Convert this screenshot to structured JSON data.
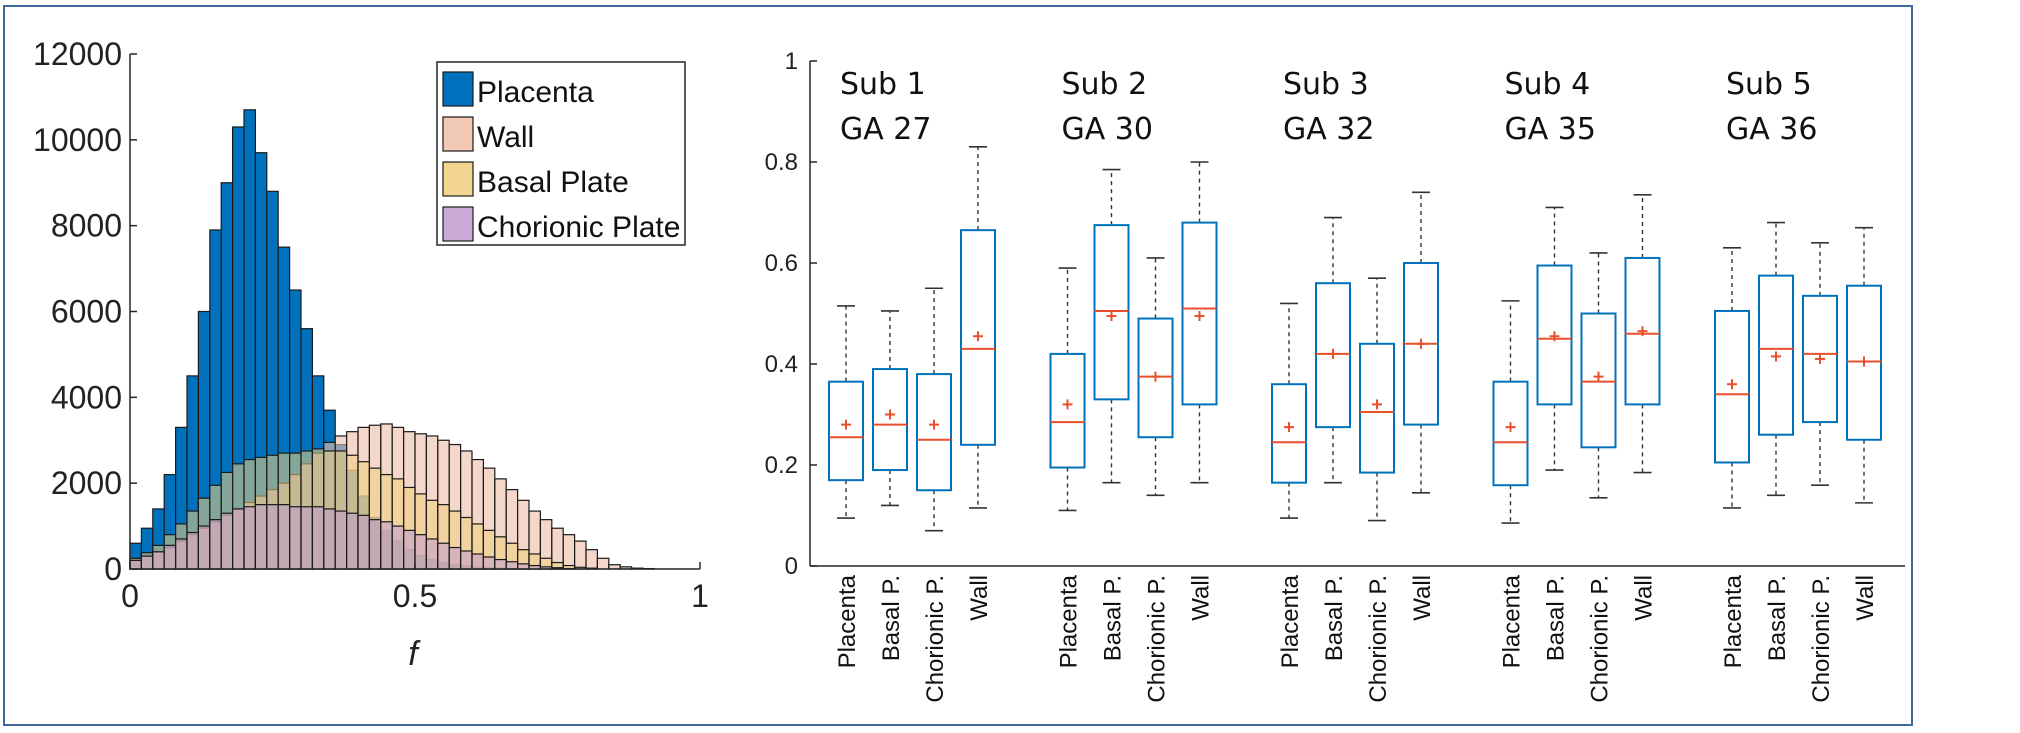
{
  "chart_data": [
    {
      "type": "histogram",
      "xlabel": "f",
      "ylabel": "",
      "xlim": [
        0,
        1
      ],
      "ylim": [
        0,
        12000
      ],
      "xticks": [
        "0",
        "0.5",
        "1"
      ],
      "yticks": [
        "0",
        "2000",
        "4000",
        "6000",
        "8000",
        "10000",
        "12000"
      ],
      "bin_width": 0.02,
      "bin_start": 0,
      "legend_position": "top-right",
      "series": [
        {
          "name": "Placenta",
          "color": "#0072bd",
          "values": [
            600,
            950,
            1400,
            2200,
            3300,
            4500,
            6000,
            7900,
            9000,
            10300,
            10700,
            9700,
            8800,
            7500,
            6500,
            5600,
            4500,
            3700,
            2900,
            2300,
            1700,
            1200,
            900,
            650,
            450,
            320,
            220,
            150,
            100,
            70,
            50,
            30,
            20,
            10,
            5,
            0,
            0,
            0,
            0,
            0,
            0,
            0,
            0,
            0,
            0,
            0,
            0,
            0,
            0,
            0
          ]
        },
        {
          "name": "Wall",
          "color": "#eebfa8",
          "values": [
            200,
            300,
            400,
            500,
            650,
            800,
            950,
            1100,
            1250,
            1400,
            1550,
            1700,
            1850,
            2000,
            2200,
            2450,
            2700,
            2950,
            3100,
            3200,
            3300,
            3350,
            3380,
            3300,
            3200,
            3150,
            3100,
            3000,
            2900,
            2750,
            2550,
            2350,
            2100,
            1850,
            1600,
            1350,
            1150,
            950,
            800,
            650,
            450,
            250,
            100,
            50,
            20,
            10,
            0,
            0,
            0,
            0
          ]
        },
        {
          "name": "Basal Plate",
          "color": "#f0cf7c",
          "values": [
            250,
            380,
            550,
            800,
            1050,
            1350,
            1650,
            1950,
            2250,
            2450,
            2550,
            2600,
            2650,
            2700,
            2700,
            2750,
            2800,
            2750,
            2750,
            2650,
            2500,
            2350,
            2200,
            2100,
            1900,
            1750,
            1600,
            1500,
            1350,
            1200,
            1050,
            900,
            750,
            600,
            450,
            350,
            250,
            150,
            80,
            40,
            20,
            0,
            0,
            0,
            0,
            0,
            0,
            0,
            0,
            0
          ]
        },
        {
          "name": "Chorionic Plate",
          "color": "#bf9bcf",
          "values": [
            200,
            300,
            400,
            550,
            700,
            850,
            1000,
            1150,
            1300,
            1400,
            1450,
            1500,
            1500,
            1500,
            1450,
            1450,
            1450,
            1400,
            1350,
            1300,
            1250,
            1150,
            1100,
            1000,
            900,
            800,
            700,
            600,
            500,
            420,
            350,
            280,
            220,
            170,
            120,
            80,
            50,
            30,
            10,
            0,
            0,
            0,
            0,
            0,
            0,
            0,
            0,
            0,
            0,
            0
          ]
        }
      ]
    },
    {
      "type": "box",
      "xlabel": "",
      "ylabel": "",
      "ylim": [
        0,
        1
      ],
      "yticks": [
        "0",
        "0.2",
        "0.4",
        "0.6",
        "0.8",
        "1"
      ],
      "groups": [
        {
          "label1": "Sub 1",
          "label2": "GA 27",
          "boxes": [
            {
              "category": "Placenta",
              "whisker_low": 0.095,
              "q1": 0.17,
              "median": 0.255,
              "q3": 0.365,
              "whisker_high": 0.515,
              "mean": 0.28
            },
            {
              "category": "Basal P.",
              "whisker_low": 0.12,
              "q1": 0.19,
              "median": 0.28,
              "q3": 0.39,
              "whisker_high": 0.505,
              "mean": 0.3
            },
            {
              "category": "Chorionic P.",
              "whisker_low": 0.07,
              "q1": 0.15,
              "median": 0.25,
              "q3": 0.38,
              "whisker_high": 0.55,
              "mean": 0.28
            },
            {
              "category": "Wall",
              "whisker_low": 0.115,
              "q1": 0.24,
              "median": 0.43,
              "q3": 0.665,
              "whisker_high": 0.83,
              "mean": 0.455
            }
          ]
        },
        {
          "label1": "Sub 2",
          "label2": "GA 30",
          "boxes": [
            {
              "category": "Placenta",
              "whisker_low": 0.11,
              "q1": 0.195,
              "median": 0.285,
              "q3": 0.42,
              "whisker_high": 0.59,
              "mean": 0.32
            },
            {
              "category": "Basal P.",
              "whisker_low": 0.165,
              "q1": 0.33,
              "median": 0.505,
              "q3": 0.675,
              "whisker_high": 0.785,
              "mean": 0.495
            },
            {
              "category": "Chorionic P.",
              "whisker_low": 0.14,
              "q1": 0.255,
              "median": 0.375,
              "q3": 0.49,
              "whisker_high": 0.61,
              "mean": 0.375
            },
            {
              "category": "Wall",
              "whisker_low": 0.165,
              "q1": 0.32,
              "median": 0.51,
              "q3": 0.68,
              "whisker_high": 0.8,
              "mean": 0.495
            }
          ]
        },
        {
          "label1": "Sub 3",
          "label2": "GA 32",
          "boxes": [
            {
              "category": "Placenta",
              "whisker_low": 0.095,
              "q1": 0.165,
              "median": 0.245,
              "q3": 0.36,
              "whisker_high": 0.52,
              "mean": 0.275
            },
            {
              "category": "Basal P.",
              "whisker_low": 0.165,
              "q1": 0.275,
              "median": 0.42,
              "q3": 0.56,
              "whisker_high": 0.69,
              "mean": 0.42
            },
            {
              "category": "Chorionic P.",
              "whisker_low": 0.09,
              "q1": 0.185,
              "median": 0.305,
              "q3": 0.44,
              "whisker_high": 0.57,
              "mean": 0.32
            },
            {
              "category": "Wall",
              "whisker_low": 0.145,
              "q1": 0.28,
              "median": 0.44,
              "q3": 0.6,
              "whisker_high": 0.74,
              "mean": 0.44
            }
          ]
        },
        {
          "label1": "Sub 4",
          "label2": "GA 35",
          "boxes": [
            {
              "category": "Placenta",
              "whisker_low": 0.085,
              "q1": 0.16,
              "median": 0.245,
              "q3": 0.365,
              "whisker_high": 0.525,
              "mean": 0.275
            },
            {
              "category": "Basal P.",
              "whisker_low": 0.19,
              "q1": 0.32,
              "median": 0.45,
              "q3": 0.595,
              "whisker_high": 0.71,
              "mean": 0.455
            },
            {
              "category": "Chorionic P.",
              "whisker_low": 0.135,
              "q1": 0.235,
              "median": 0.365,
              "q3": 0.5,
              "whisker_high": 0.62,
              "mean": 0.375
            },
            {
              "category": "Wall",
              "whisker_low": 0.185,
              "q1": 0.32,
              "median": 0.46,
              "q3": 0.61,
              "whisker_high": 0.735,
              "mean": 0.465
            }
          ]
        },
        {
          "label1": "Sub 5",
          "label2": "GA 36",
          "boxes": [
            {
              "category": "Placenta",
              "whisker_low": 0.115,
              "q1": 0.205,
              "median": 0.34,
              "q3": 0.505,
              "whisker_high": 0.63,
              "mean": 0.36
            },
            {
              "category": "Basal P.",
              "whisker_low": 0.14,
              "q1": 0.26,
              "median": 0.43,
              "q3": 0.575,
              "whisker_high": 0.68,
              "mean": 0.415
            },
            {
              "category": "Chorionic P.",
              "whisker_low": 0.16,
              "q1": 0.285,
              "median": 0.42,
              "q3": 0.535,
              "whisker_high": 0.64,
              "mean": 0.41
            },
            {
              "category": "Wall",
              "whisker_low": 0.125,
              "q1": 0.25,
              "median": 0.405,
              "q3": 0.555,
              "whisker_high": 0.67,
              "mean": 0.405
            }
          ]
        }
      ],
      "box_color": "#0072bd",
      "median_color": "#e8502c"
    }
  ]
}
